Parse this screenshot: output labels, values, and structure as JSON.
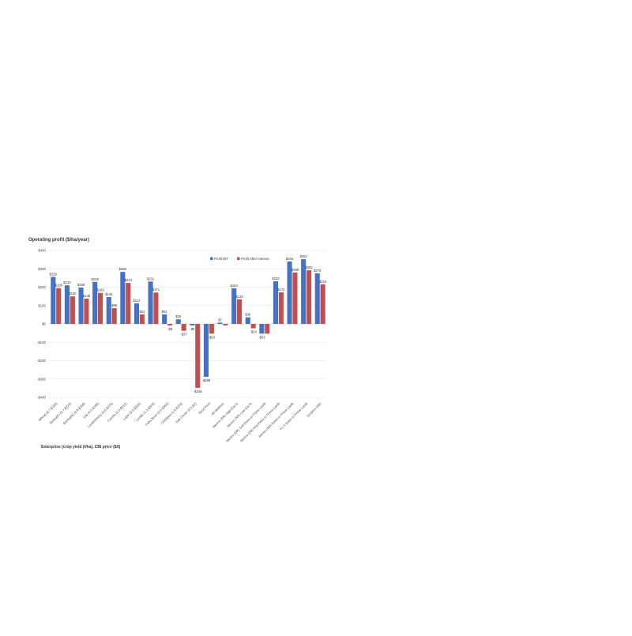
{
  "chart_data": {
    "type": "bar",
    "title": "Operating profit ($/ha/year)",
    "xlabel": "Enterprise (crop yield (t/ha), CBI price ($/t)",
    "ylabel": "",
    "ylim": [
      -400,
      400
    ],
    "yticks": [
      400,
      300,
      200,
      100,
      0,
      -100,
      -200,
      -300,
      -400
    ],
    "ytick_labels": [
      "$400",
      "$300",
      "$200",
      "$100",
      "$0",
      "-$100",
      "-$200",
      "-$300",
      "-$400"
    ],
    "grid": true,
    "legend_position": "top-right",
    "categories": [
      "Wheat (3.7,$240)",
      "Barley(F) (3.7,$224)",
      "Barley(M) (3.9,$208)",
      "Oat (4.2,$199)",
      "Lentil/Vetchy (3.0,$275)",
      "Canola (1.3,$514)",
      "Lupin (2.0,$320)",
      "Lentils (1.3,$520)",
      "Faba Bean (2.0,$360)",
      "Chickpea (1.9,$370)",
      "Sub Clover (3.5,$2)",
      "Seed Prod",
      "All Wethers",
      "Merino (SR) High Eat %",
      "Merino (SR) Low Eat %",
      "Merino (SR) Self Ewes to Prime Lamb",
      "Merino (SR) Mat Ewes to Prime Lamb",
      "Merino (SR) Ewes to Prime Lamb",
      "F1 X Ewes to Prime Lamb",
      "Dorpers (SR)"
    ],
    "series": [
      {
        "name": "Profit BIT",
        "color": "#4472c4",
        "values": [
          256,
          210,
          198,
          229,
          146,
          283,
          112,
          231,
          52,
          25,
          -8,
          -288,
          7,
          194,
          36,
          -53,
          232,
          340,
          352,
          276
        ],
        "labels": [
          "$256",
          "$210",
          "$198",
          "$229",
          "$146",
          "$283",
          "$112",
          "$231",
          "$52",
          "$25",
          "-$8",
          "-$288",
          "$7",
          "$194",
          "$36",
          "-$53",
          "$232",
          "$340",
          "$352",
          "$276"
        ]
      },
      {
        "name": "Profit After Interest",
        "color": "#c0504d",
        "values": [
          195,
          150,
          138,
          169,
          86,
          223,
          52,
          171,
          -8,
          -37,
          -348,
          -53,
          -8,
          134,
          -24,
          -53,
          172,
          280,
          292,
          216
        ],
        "labels": [
          "$195",
          "$150",
          "$138",
          "$169",
          "$86",
          "$223",
          "$52",
          "$171",
          "-$8",
          "-$37",
          "-$348",
          "-$53",
          "",
          "$134",
          "-$24",
          "",
          "$172",
          "$280",
          "$292",
          "$216"
        ]
      }
    ]
  }
}
